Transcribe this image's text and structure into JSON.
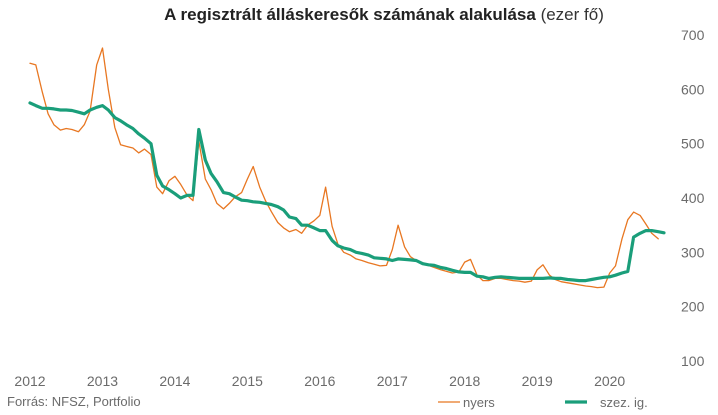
{
  "chart_data": {
    "type": "line",
    "title": "A regisztrált álláskeresők számának alakulása",
    "title_unit": "(ezer fő)",
    "source": "Forrás: NFSZ, Portfolio",
    "ylim": [
      100,
      700
    ],
    "yticks": [
      100,
      200,
      300,
      400,
      500,
      600,
      700
    ],
    "xlim": [
      2012,
      2020.75
    ],
    "xticks": [
      2012,
      2013,
      2014,
      2015,
      2016,
      2017,
      2018,
      2019,
      2020
    ],
    "grid": false,
    "legend_position": "bottom-right",
    "series": [
      {
        "name": "nyers",
        "color": "#e87722",
        "points": [
          [
            2012.0,
            648
          ],
          [
            2012.08,
            645
          ],
          [
            2012.17,
            595
          ],
          [
            2012.25,
            555
          ],
          [
            2012.33,
            535
          ],
          [
            2012.42,
            525
          ],
          [
            2012.5,
            528
          ],
          [
            2012.58,
            526
          ],
          [
            2012.67,
            522
          ],
          [
            2012.75,
            535
          ],
          [
            2012.83,
            560
          ],
          [
            2012.92,
            645
          ],
          [
            2013.0,
            676
          ],
          [
            2013.08,
            600
          ],
          [
            2013.17,
            530
          ],
          [
            2013.25,
            498
          ],
          [
            2013.33,
            495
          ],
          [
            2013.42,
            492
          ],
          [
            2013.5,
            483
          ],
          [
            2013.58,
            490
          ],
          [
            2013.67,
            480
          ],
          [
            2013.75,
            420
          ],
          [
            2013.83,
            408
          ],
          [
            2013.92,
            432
          ],
          [
            2014.0,
            440
          ],
          [
            2014.08,
            425
          ],
          [
            2014.17,
            405
          ],
          [
            2014.25,
            395
          ],
          [
            2014.33,
            505
          ],
          [
            2014.42,
            435
          ],
          [
            2014.5,
            415
          ],
          [
            2014.58,
            390
          ],
          [
            2014.67,
            380
          ],
          [
            2014.75,
            390
          ],
          [
            2014.83,
            402
          ],
          [
            2014.92,
            410
          ],
          [
            2015.0,
            435
          ],
          [
            2015.08,
            458
          ],
          [
            2015.17,
            420
          ],
          [
            2015.25,
            395
          ],
          [
            2015.33,
            375
          ],
          [
            2015.42,
            355
          ],
          [
            2015.5,
            345
          ],
          [
            2015.58,
            338
          ],
          [
            2015.67,
            342
          ],
          [
            2015.75,
            335
          ],
          [
            2015.83,
            350
          ],
          [
            2015.92,
            358
          ],
          [
            2016.0,
            368
          ],
          [
            2016.08,
            420
          ],
          [
            2016.17,
            348
          ],
          [
            2016.25,
            315
          ],
          [
            2016.33,
            300
          ],
          [
            2016.42,
            295
          ],
          [
            2016.5,
            288
          ],
          [
            2016.58,
            285
          ],
          [
            2016.67,
            281
          ],
          [
            2016.75,
            278
          ],
          [
            2016.83,
            275
          ],
          [
            2016.92,
            276
          ],
          [
            2017.0,
            305
          ],
          [
            2017.08,
            350
          ],
          [
            2017.17,
            310
          ],
          [
            2017.25,
            292
          ],
          [
            2017.33,
            285
          ],
          [
            2017.42,
            281
          ],
          [
            2017.5,
            276
          ],
          [
            2017.58,
            272
          ],
          [
            2017.67,
            268
          ],
          [
            2017.75,
            265
          ],
          [
            2017.83,
            262
          ],
          [
            2017.92,
            264
          ],
          [
            2018.0,
            282
          ],
          [
            2018.08,
            287
          ],
          [
            2018.17,
            258
          ],
          [
            2018.25,
            248
          ],
          [
            2018.33,
            248
          ],
          [
            2018.42,
            252
          ],
          [
            2018.5,
            252
          ],
          [
            2018.58,
            250
          ],
          [
            2018.67,
            248
          ],
          [
            2018.75,
            247
          ],
          [
            2018.83,
            245
          ],
          [
            2018.92,
            247
          ],
          [
            2019.0,
            268
          ],
          [
            2019.08,
            277
          ],
          [
            2019.17,
            258
          ],
          [
            2019.25,
            250
          ],
          [
            2019.33,
            246
          ],
          [
            2019.42,
            244
          ],
          [
            2019.5,
            242
          ],
          [
            2019.58,
            240
          ],
          [
            2019.67,
            238
          ],
          [
            2019.75,
            237
          ],
          [
            2019.83,
            235
          ],
          [
            2019.92,
            236
          ],
          [
            2020.0,
            262
          ],
          [
            2020.08,
            275
          ],
          [
            2020.17,
            325
          ],
          [
            2020.25,
            360
          ],
          [
            2020.33,
            374
          ],
          [
            2020.42,
            368
          ],
          [
            2020.5,
            352
          ],
          [
            2020.58,
            335
          ],
          [
            2020.67,
            325
          ]
        ]
      },
      {
        "name": "szez. ig.",
        "color": "#1a9e7a",
        "points": [
          [
            2012.0,
            575
          ],
          [
            2012.08,
            570
          ],
          [
            2012.17,
            565
          ],
          [
            2012.25,
            565
          ],
          [
            2012.33,
            564
          ],
          [
            2012.42,
            562
          ],
          [
            2012.5,
            562
          ],
          [
            2012.58,
            561
          ],
          [
            2012.67,
            558
          ],
          [
            2012.75,
            555
          ],
          [
            2012.83,
            562
          ],
          [
            2012.92,
            567
          ],
          [
            2013.0,
            570
          ],
          [
            2013.08,
            562
          ],
          [
            2013.17,
            548
          ],
          [
            2013.25,
            542
          ],
          [
            2013.33,
            535
          ],
          [
            2013.42,
            528
          ],
          [
            2013.5,
            518
          ],
          [
            2013.58,
            510
          ],
          [
            2013.67,
            500
          ],
          [
            2013.75,
            442
          ],
          [
            2013.83,
            422
          ],
          [
            2013.92,
            415
          ],
          [
            2014.0,
            408
          ],
          [
            2014.08,
            400
          ],
          [
            2014.17,
            405
          ],
          [
            2014.25,
            405
          ],
          [
            2014.33,
            526
          ],
          [
            2014.42,
            470
          ],
          [
            2014.5,
            445
          ],
          [
            2014.58,
            430
          ],
          [
            2014.67,
            410
          ],
          [
            2014.75,
            408
          ],
          [
            2014.83,
            402
          ],
          [
            2014.92,
            396
          ],
          [
            2015.0,
            395
          ],
          [
            2015.08,
            393
          ],
          [
            2015.17,
            392
          ],
          [
            2015.25,
            390
          ],
          [
            2015.33,
            388
          ],
          [
            2015.42,
            384
          ],
          [
            2015.5,
            378
          ],
          [
            2015.58,
            365
          ],
          [
            2015.67,
            362
          ],
          [
            2015.75,
            350
          ],
          [
            2015.83,
            350
          ],
          [
            2015.92,
            345
          ],
          [
            2016.0,
            340
          ],
          [
            2016.08,
            340
          ],
          [
            2016.17,
            322
          ],
          [
            2016.25,
            312
          ],
          [
            2016.33,
            308
          ],
          [
            2016.42,
            305
          ],
          [
            2016.5,
            300
          ],
          [
            2016.58,
            298
          ],
          [
            2016.67,
            295
          ],
          [
            2016.75,
            290
          ],
          [
            2016.83,
            289
          ],
          [
            2016.92,
            288
          ],
          [
            2017.0,
            285
          ],
          [
            2017.08,
            288
          ],
          [
            2017.17,
            287
          ],
          [
            2017.25,
            286
          ],
          [
            2017.33,
            285
          ],
          [
            2017.42,
            279
          ],
          [
            2017.5,
            277
          ],
          [
            2017.58,
            276
          ],
          [
            2017.67,
            272
          ],
          [
            2017.75,
            270
          ],
          [
            2017.83,
            267
          ],
          [
            2017.92,
            264
          ],
          [
            2018.0,
            263
          ],
          [
            2018.08,
            263
          ],
          [
            2018.17,
            256
          ],
          [
            2018.25,
            255
          ],
          [
            2018.33,
            252
          ],
          [
            2018.42,
            254
          ],
          [
            2018.5,
            255
          ],
          [
            2018.58,
            254
          ],
          [
            2018.67,
            253
          ],
          [
            2018.75,
            252
          ],
          [
            2018.83,
            252
          ],
          [
            2018.92,
            252
          ],
          [
            2019.0,
            252
          ],
          [
            2019.08,
            252
          ],
          [
            2019.17,
            253
          ],
          [
            2019.25,
            252
          ],
          [
            2019.33,
            252
          ],
          [
            2019.42,
            250
          ],
          [
            2019.5,
            249
          ],
          [
            2019.58,
            248
          ],
          [
            2019.67,
            248
          ],
          [
            2019.75,
            250
          ],
          [
            2019.83,
            252
          ],
          [
            2019.92,
            254
          ],
          [
            2020.0,
            255
          ],
          [
            2020.08,
            258
          ],
          [
            2020.17,
            262
          ],
          [
            2020.25,
            265
          ],
          [
            2020.33,
            328
          ],
          [
            2020.42,
            335
          ],
          [
            2020.5,
            340
          ],
          [
            2020.58,
            340
          ],
          [
            2020.67,
            338
          ],
          [
            2020.75,
            336
          ]
        ]
      }
    ]
  }
}
